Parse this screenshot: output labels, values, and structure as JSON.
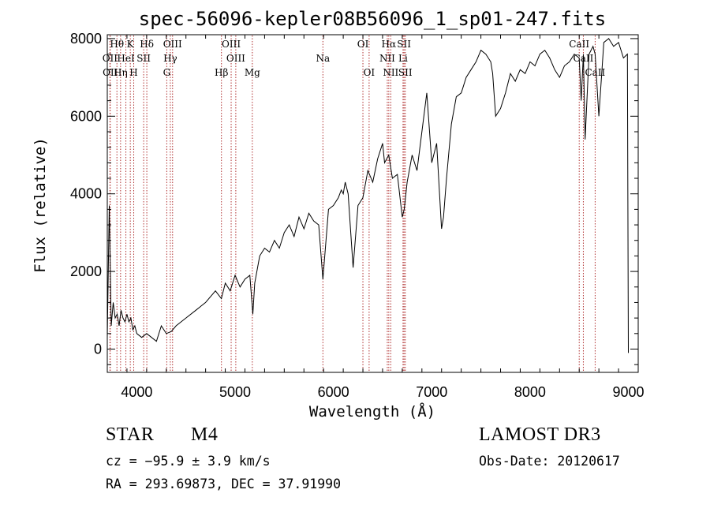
{
  "chart_data": {
    "type": "line",
    "title": "spec-56096-kepler08B56096_1_sp01-247.fits",
    "xlabel": "Wavelength (Å)",
    "ylabel": "Flux (relative)",
    "xlim": [
      3700,
      9100
    ],
    "ylim": [
      -600,
      8100
    ],
    "xticks": [
      4000,
      5000,
      6000,
      7000,
      8000,
      9000
    ],
    "yticks": [
      0,
      2000,
      4000,
      6000,
      8000
    ],
    "series": [
      {
        "name": "flux",
        "x": [
          3700,
          3720,
          3740,
          3760,
          3780,
          3800,
          3820,
          3840,
          3860,
          3880,
          3900,
          3920,
          3940,
          3960,
          3980,
          4000,
          4050,
          4100,
          4150,
          4200,
          4250,
          4300,
          4350,
          4400,
          4450,
          4500,
          4600,
          4700,
          4800,
          4860,
          4900,
          4950,
          5000,
          5050,
          5100,
          5150,
          5180,
          5200,
          5250,
          5300,
          5350,
          5400,
          5450,
          5500,
          5550,
          5600,
          5650,
          5700,
          5750,
          5800,
          5850,
          5893,
          5950,
          6000,
          6050,
          6080,
          6100,
          6120,
          6150,
          6200,
          6250,
          6300,
          6350,
          6400,
          6450,
          6500,
          6520,
          6563,
          6600,
          6650,
          6700,
          6720,
          6750,
          6800,
          6850,
          6900,
          6950,
          7000,
          7050,
          7100,
          7120,
          7150,
          7200,
          7250,
          7300,
          7350,
          7400,
          7450,
          7500,
          7550,
          7600,
          7620,
          7650,
          7700,
          7750,
          7800,
          7850,
          7900,
          7950,
          8000,
          8050,
          8100,
          8150,
          8200,
          8250,
          8300,
          8350,
          8400,
          8450,
          8500,
          8520,
          8542,
          8560,
          8600,
          8640,
          8662,
          8700,
          8750,
          8800,
          8850,
          8900,
          8950,
          8990,
          9000
        ],
        "y": [
          300,
          3700,
          600,
          1200,
          800,
          900,
          600,
          1000,
          800,
          700,
          900,
          700,
          800,
          500,
          600,
          400,
          300,
          400,
          300,
          200,
          600,
          400,
          450,
          600,
          700,
          800,
          1000,
          1200,
          1500,
          1300,
          1700,
          1500,
          1900,
          1600,
          1800,
          1900,
          900,
          1700,
          2400,
          2600,
          2500,
          2800,
          2600,
          3000,
          3200,
          2900,
          3400,
          3100,
          3500,
          3300,
          3200,
          1800,
          3600,
          3700,
          3900,
          4100,
          4000,
          4300,
          4000,
          2100,
          3700,
          3900,
          4600,
          4300,
          4900,
          5300,
          4800,
          5000,
          4400,
          4500,
          3400,
          3600,
          4300,
          5000,
          4600,
          5600,
          6600,
          4800,
          5300,
          3100,
          3400,
          4400,
          5800,
          6500,
          6600,
          7000,
          7200,
          7400,
          7700,
          7600,
          7400,
          7100,
          6000,
          6200,
          6600,
          7100,
          6900,
          7200,
          7100,
          7400,
          7300,
          7600,
          7700,
          7500,
          7200,
          7000,
          7300,
          7400,
          7600,
          7500,
          6400,
          7600,
          5400,
          7600,
          7800,
          7600,
          6000,
          7900,
          8000,
          7800,
          7900,
          7500,
          7600,
          -100
        ]
      }
    ],
    "line_markers": [
      {
        "label": "Hθ",
        "wl": 3798,
        "row": 0
      },
      {
        "label": "K",
        "wl": 3934,
        "row": 0
      },
      {
        "label": "Hδ",
        "wl": 4102,
        "row": 0
      },
      {
        "label": "OIII",
        "wl": 4364,
        "row": 0
      },
      {
        "label": "OIII",
        "wl": 4960,
        "row": 0
      },
      {
        "label": "Na",
        "wl": 5893,
        "row": 1
      },
      {
        "label": "OI",
        "wl": 6300,
        "row": 0
      },
      {
        "label": "Hα",
        "wl": 6563,
        "row": 0
      },
      {
        "label": "SII",
        "wl": 6718,
        "row": 0
      },
      {
        "label": "CaII",
        "wl": 8500,
        "row": 0
      },
      {
        "label": "OII",
        "wl": 3727,
        "row": 1
      },
      {
        "label": "HeI",
        "wl": 3889,
        "row": 1
      },
      {
        "label": "SII",
        "wl": 4070,
        "row": 1
      },
      {
        "label": "Hγ",
        "wl": 4341,
        "row": 1
      },
      {
        "label": "OIII",
        "wl": 5007,
        "row": 1
      },
      {
        "label": "NII",
        "wl": 6548,
        "row": 1
      },
      {
        "label": "Li",
        "wl": 6708,
        "row": 1
      },
      {
        "label": "CaII",
        "wl": 8542,
        "row": 1
      },
      {
        "label": "OII",
        "wl": 3730,
        "row": 2
      },
      {
        "label": "Hη",
        "wl": 3835,
        "row": 2
      },
      {
        "label": "H",
        "wl": 3969,
        "row": 2
      },
      {
        "label": "G",
        "wl": 4305,
        "row": 2
      },
      {
        "label": "Hβ",
        "wl": 4861,
        "row": 2
      },
      {
        "label": "Mg",
        "wl": 5175,
        "row": 2
      },
      {
        "label": "OI",
        "wl": 6363,
        "row": 2
      },
      {
        "label": "NII",
        "wl": 6583,
        "row": 2
      },
      {
        "label": "SII",
        "wl": 6731,
        "row": 2
      },
      {
        "label": "CaII",
        "wl": 8662,
        "row": 2
      }
    ],
    "marker_color": "#b03030"
  },
  "info": {
    "class": "STAR",
    "subclass": "M4",
    "survey": "LAMOST DR3",
    "cz": "cz = −95.9 ± 3.9 km/s",
    "obs_date": "Obs-Date: 20120617",
    "coords": "RA = 293.69873, DEC =  37.91990"
  }
}
